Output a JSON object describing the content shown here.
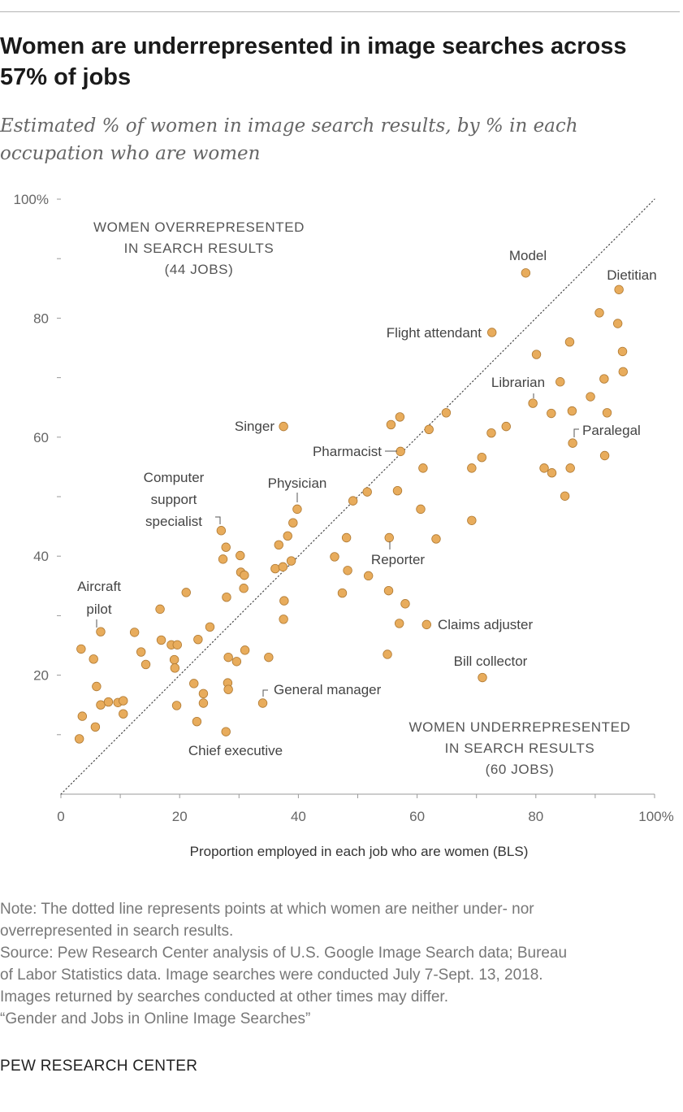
{
  "chart_data": {
    "type": "scatter",
    "title": "Women are underrepresented in image searches across 57% of jobs",
    "subtitle": "Estimated % of women in image search results, by % in each occupation who are women",
    "xlabel": "Proportion employed in each job who are women (BLS)",
    "ylabel": "",
    "xlim": [
      0,
      100
    ],
    "ylim": [
      0,
      100
    ],
    "x_ticks": [
      "0",
      "20",
      "40",
      "60",
      "80",
      "100%"
    ],
    "y_ticks": [
      "20",
      "40",
      "60",
      "80",
      "100%"
    ],
    "reference_line": "y = x (dotted)",
    "regions": [
      {
        "lines": [
          "WOMEN OVERREPRESENTED",
          "IN SEARCH RESULTS",
          "(44 JOBS)"
        ]
      },
      {
        "lines": [
          "WOMEN UNDERREPRESENTED",
          "IN SEARCH RESULTS",
          "(60 JOBS)"
        ]
      }
    ],
    "labeled_points": [
      {
        "label": "Model",
        "x": 78.3,
        "y": 87.6
      },
      {
        "label": "Dietitian",
        "x": 94,
        "y": 84.8
      },
      {
        "label": "Flight attendant",
        "x": 72.6,
        "y": 77.6
      },
      {
        "label": "Librarian",
        "x": 79.5,
        "y": 65.7
      },
      {
        "label": "Paralegal",
        "x": 86.2,
        "y": 59
      },
      {
        "label": "Singer",
        "x": 37.5,
        "y": 61.8
      },
      {
        "label": "Pharmacist",
        "x": 57.2,
        "y": 57.6
      },
      {
        "label": "Physician",
        "x": 39.8,
        "y": 47.9
      },
      {
        "label": "Computer support specialist",
        "x": 27,
        "y": 44.3
      },
      {
        "label": "Reporter",
        "x": 55.3,
        "y": 43.1
      },
      {
        "label": "Aircraft pilot",
        "x": 6.7,
        "y": 27.3
      },
      {
        "label": "Claims adjuster",
        "x": 61.6,
        "y": 28.5
      },
      {
        "label": "Bill collector",
        "x": 71,
        "y": 19.6
      },
      {
        "label": "General manager",
        "x": 34,
        "y": 15.3
      },
      {
        "label": "Chief executive",
        "x": 27.8,
        "y": 10.5
      }
    ],
    "points": [
      [
        3.4,
        24.4
      ],
      [
        3.6,
        13.1
      ],
      [
        3.1,
        9.3
      ],
      [
        5.5,
        22.7
      ],
      [
        6.0,
        18.1
      ],
      [
        5.8,
        11.3
      ],
      [
        6.7,
        15.0
      ],
      [
        8.0,
        15.5
      ],
      [
        9.6,
        15.4
      ],
      [
        10.5,
        15.7
      ],
      [
        10.5,
        13.5
      ],
      [
        12.4,
        27.2
      ],
      [
        13.5,
        23.9
      ],
      [
        14.3,
        21.8
      ],
      [
        16.7,
        31.1
      ],
      [
        16.9,
        25.9
      ],
      [
        18.6,
        25.1
      ],
      [
        19.1,
        22.6
      ],
      [
        19.2,
        21.2
      ],
      [
        19.6,
        25.1
      ],
      [
        19.5,
        14.9
      ],
      [
        21.1,
        33.9
      ],
      [
        22.4,
        18.6
      ],
      [
        23.1,
        26.0
      ],
      [
        22.9,
        12.2
      ],
      [
        24.0,
        16.9
      ],
      [
        24.0,
        15.3
      ],
      [
        25.1,
        28.1
      ],
      [
        27.3,
        39.5
      ],
      [
        27.8,
        41.5
      ],
      [
        27.9,
        33.1
      ],
      [
        28.2,
        23.0
      ],
      [
        28.1,
        18.7
      ],
      [
        28.2,
        17.6
      ],
      [
        29.6,
        22.3
      ],
      [
        30.2,
        40.1
      ],
      [
        30.3,
        37.3
      ],
      [
        30.9,
        36.8
      ],
      [
        30.8,
        34.6
      ],
      [
        31.0,
        24.2
      ],
      [
        35.0,
        23.0
      ],
      [
        36.1,
        37.9
      ],
      [
        36.7,
        41.9
      ],
      [
        37.4,
        38.2
      ],
      [
        37.6,
        32.5
      ],
      [
        37.5,
        29.4
      ],
      [
        38.2,
        43.4
      ],
      [
        38.8,
        39.2
      ],
      [
        39.1,
        45.6
      ],
      [
        46.1,
        39.9
      ],
      [
        47.4,
        33.8
      ],
      [
        48.1,
        43.1
      ],
      [
        48.3,
        37.6
      ],
      [
        49.2,
        49.3
      ],
      [
        51.6,
        50.8
      ],
      [
        51.8,
        36.7
      ],
      [
        55.0,
        23.5
      ],
      [
        55.2,
        34.2
      ],
      [
        55.6,
        62.1
      ],
      [
        56.7,
        51.0
      ],
      [
        57.1,
        63.4
      ],
      [
        57.0,
        28.7
      ],
      [
        58.0,
        32.0
      ],
      [
        61.0,
        54.8
      ],
      [
        60.6,
        47.9
      ],
      [
        62.0,
        61.3
      ],
      [
        63.2,
        42.9
      ],
      [
        64.9,
        64.1
      ],
      [
        69.2,
        54.8
      ],
      [
        69.2,
        46.0
      ],
      [
        70.9,
        56.6
      ],
      [
        72.5,
        60.7
      ],
      [
        75.0,
        61.8
      ],
      [
        80.1,
        73.9
      ],
      [
        81.4,
        54.8
      ],
      [
        82.6,
        64.0
      ],
      [
        82.7,
        54.0
      ],
      [
        84.1,
        69.3
      ],
      [
        84.9,
        50.1
      ],
      [
        85.7,
        76.0
      ],
      [
        85.8,
        54.8
      ],
      [
        86.1,
        64.4
      ],
      [
        89.2,
        66.8
      ],
      [
        90.7,
        80.9
      ],
      [
        91.5,
        69.8
      ],
      [
        91.6,
        56.9
      ],
      [
        92.0,
        64.1
      ],
      [
        93.8,
        79.1
      ],
      [
        94.6,
        74.4
      ],
      [
        94.7,
        71.0
      ]
    ]
  },
  "note": {
    "lines": [
      "Note: The dotted line represents points at which women are neither under- nor",
      "overrepresented in search results.",
      "Source: Pew Research Center analysis of U.S. Google Image Search data; Bureau",
      "of Labor Statistics data. Image searches were conducted July 7-Sept. 13, 2018.",
      "Images returned by searches conducted at other times may differ.",
      "“Gender and Jobs in Online Image Searches”"
    ]
  },
  "brand": "PEW RESEARCH CENTER",
  "colors": {
    "point_fill": "#e8ac5c",
    "point_stroke": "#b07a33",
    "axis": "#999999",
    "region_text": "#555555",
    "label_text": "#444444"
  }
}
